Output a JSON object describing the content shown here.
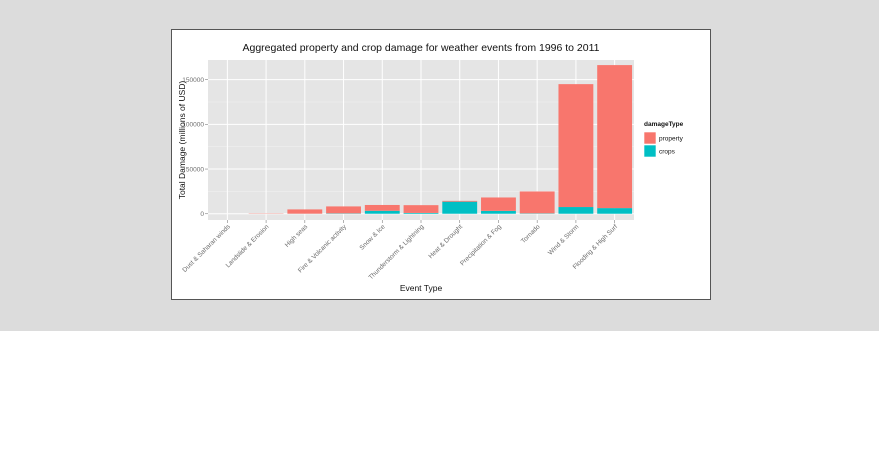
{
  "colors": {
    "panel": "#e5e5e5",
    "gridMajor": "#ffffff",
    "gridMinor": "#f2f2f2",
    "property": "#f8766d",
    "crops": "#00bfc4"
  },
  "chart_data": {
    "type": "bar",
    "stacked": true,
    "title": "Aggregated property and crop damage for weather events from 1996 to 2011",
    "xlabel": "Event Type",
    "ylabel": "Total Damage (millions of USD)",
    "ylim": [
      -7000,
      172000
    ],
    "yticks": [
      0,
      50000,
      100000,
      150000
    ],
    "ytick_labels": [
      "0",
      "50000",
      "100000",
      "150000"
    ],
    "grid": true,
    "legend": {
      "title": "damageType",
      "position": "right"
    },
    "categories": [
      "Dust & Saharan winds",
      "Landslide & Erosion",
      "High seas",
      "Fire & Volcanic activity",
      "Snow & Ice",
      "Thunderstorm & Lightning",
      "Heat & Drought",
      "Precipitation & Fog",
      "Tornado",
      "Wind & Storm",
      "Flooding & High Surf"
    ],
    "series": [
      {
        "name": "property",
        "values": [
          10,
          330,
          4800,
          7800,
          6500,
          8700,
          900,
          15000,
          24500,
          137500,
          160000
        ]
      },
      {
        "name": "crops",
        "values": [
          3,
          20,
          45,
          400,
          3300,
          900,
          13500,
          3200,
          420,
          7500,
          6300
        ]
      }
    ]
  }
}
